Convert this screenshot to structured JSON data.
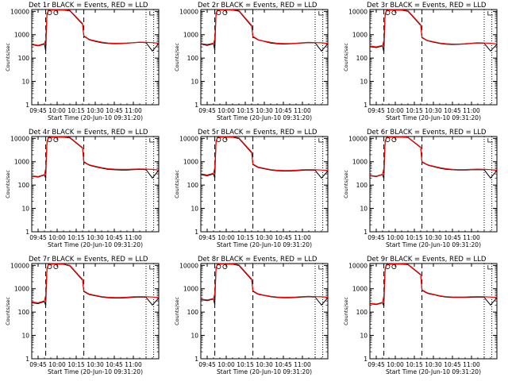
{
  "layout_note": "",
  "chart_data": [
    {
      "type": "line",
      "title": "Det 1r BLACK = Events, RED = LLD",
      "xlabel": "Start Time (20-Jun-10 09:31:20)",
      "ylabel": "Counts/sec",
      "y_scale": "log",
      "ylim": [
        1,
        12000
      ],
      "y_ticks": [
        "1",
        "10",
        "100",
        "1000",
        "10000"
      ],
      "x_tick_labels": [
        "09:45",
        "10:00",
        "10:15",
        "10:30",
        "10:45",
        "11:00"
      ],
      "grid": false,
      "legend": "none",
      "colors": {
        "events": "#000000",
        "lld": "#ff0000"
      },
      "x_minutes": [
        0,
        5,
        10,
        11,
        12,
        13,
        15,
        18,
        20,
        25,
        30,
        40,
        41,
        44,
        45,
        46,
        50,
        55,
        60,
        65,
        70,
        75,
        80,
        85,
        90,
        95,
        100
      ],
      "lld": [
        400,
        350,
        420,
        600,
        8000,
        11000,
        11500,
        11800,
        11700,
        11600,
        11000,
        3000,
        900,
        700,
        650,
        620,
        550,
        480,
        440,
        430,
        430,
        440,
        460,
        480,
        470,
        460,
        430
      ],
      "events": [
        380,
        330,
        400,
        200,
        7000,
        10500,
        11200,
        11500,
        11400,
        11300,
        10500,
        2800,
        850,
        680,
        620,
        590,
        520,
        450,
        420,
        410,
        415,
        430,
        450,
        470,
        460,
        200,
        420
      ],
      "events_end_drop": true
    },
    {
      "type": "line",
      "title": "Det 2r BLACK = Events, RED = LLD",
      "xlabel": "Start Time (20-Jun-10 09:31:20)",
      "ylabel": "Counts/sec",
      "y_scale": "log",
      "ylim": [
        1,
        12000
      ],
      "y_ticks": [
        "1",
        "10",
        "100",
        "1000",
        "10000"
      ],
      "x_tick_labels": [
        "09:45",
        "10:00",
        "10:15",
        "10:30",
        "10:45",
        "11:00"
      ],
      "grid": false,
      "legend": "none",
      "colors": {
        "events": "#000000",
        "lld": "#ff0000"
      },
      "x_minutes": [
        0,
        5,
        10,
        11,
        12,
        13,
        15,
        18,
        20,
        25,
        30,
        40,
        41,
        44,
        45,
        46,
        50,
        55,
        60,
        65,
        70,
        75,
        80,
        85,
        90,
        95,
        100
      ],
      "lld": [
        420,
        380,
        430,
        650,
        8500,
        11200,
        11700,
        11900,
        11800,
        11600,
        10800,
        2500,
        850,
        680,
        620,
        600,
        530,
        470,
        430,
        420,
        420,
        430,
        450,
        470,
        460,
        450,
        420
      ],
      "events": [
        400,
        350,
        410,
        220,
        7500,
        10600,
        11300,
        11600,
        11500,
        11300,
        10200,
        2300,
        800,
        650,
        600,
        580,
        510,
        440,
        410,
        400,
        405,
        420,
        440,
        460,
        450,
        200,
        410
      ],
      "events_end_drop": true
    },
    {
      "type": "line",
      "title": "Det 3r BLACK = Events, RED = LLD",
      "xlabel": "Start Time (20-Jun-10 09:31:20)",
      "ylabel": "Counts/sec",
      "y_scale": "log",
      "ylim": [
        1,
        12000
      ],
      "y_ticks": [
        "1",
        "10",
        "100",
        "1000",
        "10000"
      ],
      "x_tick_labels": [
        "09:45",
        "10:00",
        "10:15",
        "10:30",
        "10:45",
        "11:00"
      ],
      "grid": false,
      "legend": "none",
      "colors": {
        "events": "#000000",
        "lld": "#ff0000"
      },
      "x_minutes": [
        0,
        5,
        10,
        11,
        12,
        13,
        15,
        18,
        20,
        25,
        30,
        40,
        41,
        44,
        45,
        46,
        50,
        55,
        60,
        65,
        70,
        75,
        80,
        85,
        90,
        95,
        100
      ],
      "lld": [
        330,
        300,
        350,
        550,
        7500,
        11000,
        11500,
        11800,
        11700,
        11500,
        10600,
        2700,
        780,
        620,
        580,
        560,
        500,
        440,
        410,
        400,
        400,
        410,
        430,
        450,
        440,
        430,
        400
      ],
      "events": [
        310,
        280,
        330,
        180,
        6800,
        10300,
        11100,
        11500,
        11300,
        11200,
        10000,
        2500,
        740,
        600,
        560,
        540,
        480,
        420,
        390,
        380,
        385,
        400,
        420,
        440,
        430,
        200,
        390
      ],
      "events_end_drop": true
    },
    {
      "type": "line",
      "title": "Det 4r BLACK = Events, RED = LLD",
      "xlabel": "Start Time (20-Jun-10 09:31:20)",
      "ylabel": "Counts/sec",
      "y_scale": "log",
      "ylim": [
        1,
        12000
      ],
      "y_ticks": [
        "1",
        "10",
        "100",
        "1000",
        "10000"
      ],
      "x_tick_labels": [
        "09:45",
        "10:00",
        "10:15",
        "10:30",
        "10:45",
        "11:00"
      ],
      "grid": false,
      "legend": "none",
      "colors": {
        "events": "#000000",
        "lld": "#ff0000"
      },
      "x_minutes": [
        0,
        5,
        10,
        11,
        12,
        13,
        15,
        18,
        20,
        25,
        30,
        40,
        41,
        44,
        45,
        46,
        50,
        55,
        60,
        65,
        70,
        75,
        80,
        85,
        90,
        95,
        100
      ],
      "lld": [
        250,
        230,
        280,
        500,
        7000,
        10800,
        11400,
        11700,
        11600,
        11500,
        11000,
        4000,
        1000,
        800,
        760,
        720,
        640,
        560,
        500,
        480,
        470,
        470,
        480,
        490,
        480,
        470,
        440
      ],
      "events": [
        240,
        220,
        270,
        200,
        6500,
        10200,
        11000,
        11400,
        11300,
        11200,
        10500,
        3800,
        950,
        770,
        720,
        690,
        610,
        530,
        470,
        450,
        440,
        440,
        460,
        470,
        460,
        200,
        430
      ],
      "events_end_drop": true
    },
    {
      "type": "line",
      "title": "Det 5r BLACK = Events, RED = LLD",
      "xlabel": "Start Time (20-Jun-10 09:31:20)",
      "ylabel": "Counts/sec",
      "y_scale": "log",
      "ylim": [
        1,
        12000
      ],
      "y_ticks": [
        "1",
        "10",
        "100",
        "1000",
        "10000"
      ],
      "x_tick_labels": [
        "09:45",
        "10:00",
        "10:15",
        "10:30",
        "10:45",
        "11:00"
      ],
      "grid": false,
      "legend": "none",
      "colors": {
        "events": "#000000",
        "lld": "#ff0000"
      },
      "x_minutes": [
        0,
        5,
        10,
        11,
        12,
        13,
        15,
        18,
        20,
        25,
        30,
        40,
        41,
        44,
        45,
        46,
        50,
        55,
        60,
        65,
        70,
        75,
        80,
        85,
        90,
        95,
        100
      ],
      "lld": [
        300,
        270,
        320,
        550,
        7500,
        11000,
        11500,
        11800,
        11700,
        11500,
        10400,
        2600,
        800,
        640,
        600,
        580,
        520,
        460,
        430,
        420,
        420,
        430,
        450,
        460,
        450,
        440,
        420
      ],
      "events": [
        280,
        250,
        300,
        200,
        7000,
        10400,
        11100,
        11500,
        11300,
        11200,
        9800,
        2400,
        760,
        610,
        570,
        550,
        500,
        440,
        410,
        400,
        400,
        410,
        430,
        440,
        430,
        200,
        400
      ],
      "events_end_drop": true
    },
    {
      "type": "line",
      "title": "Det 6r BLACK = Events, RED = LLD",
      "xlabel": "Start Time (20-Jun-10 09:31:20)",
      "ylabel": "Counts/sec",
      "y_scale": "log",
      "ylim": [
        1,
        12000
      ],
      "y_ticks": [
        "1",
        "10",
        "100",
        "1000",
        "10000"
      ],
      "x_tick_labels": [
        "09:45",
        "10:00",
        "10:15",
        "10:30",
        "10:45",
        "11:00"
      ],
      "grid": false,
      "legend": "none",
      "colors": {
        "events": "#000000",
        "lld": "#ff0000"
      },
      "x_minutes": [
        0,
        5,
        10,
        11,
        12,
        13,
        15,
        18,
        20,
        25,
        30,
        40,
        41,
        44,
        45,
        46,
        50,
        55,
        60,
        65,
        70,
        75,
        80,
        85,
        90,
        95,
        100
      ],
      "lld": [
        260,
        240,
        290,
        520,
        7200,
        10900,
        11500,
        11800,
        11700,
        11600,
        11200,
        4200,
        1000,
        820,
        770,
        730,
        650,
        560,
        500,
        470,
        460,
        460,
        470,
        480,
        470,
        460,
        430
      ],
      "events": [
        250,
        230,
        280,
        190,
        6700,
        10300,
        11100,
        11500,
        11300,
        11300,
        10800,
        4000,
        960,
        790,
        740,
        700,
        620,
        530,
        470,
        450,
        440,
        440,
        450,
        460,
        450,
        200,
        420
      ],
      "events_end_drop": true
    },
    {
      "type": "line",
      "title": "Det 7r BLACK = Events, RED = LLD",
      "xlabel": "Start Time (20-Jun-10 09:31:20)",
      "ylabel": "Counts/sec",
      "y_scale": "log",
      "ylim": [
        1,
        12000
      ],
      "y_ticks": [
        "1",
        "10",
        "100",
        "1000",
        "10000"
      ],
      "x_tick_labels": [
        "09:45",
        "10:00",
        "10:15",
        "10:30",
        "10:45",
        "11:00"
      ],
      "grid": false,
      "legend": "none",
      "colors": {
        "events": "#000000",
        "lld": "#ff0000"
      },
      "x_minutes": [
        0,
        5,
        10,
        11,
        12,
        13,
        15,
        18,
        20,
        25,
        30,
        40,
        41,
        44,
        45,
        46,
        50,
        55,
        60,
        65,
        70,
        75,
        80,
        85,
        90,
        95,
        100
      ],
      "lld": [
        270,
        250,
        300,
        520,
        7300,
        11000,
        11500,
        11800,
        11700,
        11400,
        10000,
        2500,
        800,
        640,
        600,
        580,
        520,
        460,
        430,
        420,
        420,
        430,
        450,
        460,
        450,
        440,
        420
      ],
      "events": [
        250,
        230,
        280,
        190,
        6800,
        10400,
        11100,
        11500,
        11300,
        11100,
        9500,
        2300,
        760,
        610,
        570,
        550,
        500,
        440,
        410,
        400,
        400,
        410,
        430,
        440,
        430,
        200,
        400
      ],
      "events_end_drop": true
    },
    {
      "type": "line",
      "title": "Det 8r BLACK = Events, RED = LLD",
      "xlabel": "Start Time (20-Jun-10 09:31:20)",
      "ylabel": "Counts/sec",
      "y_scale": "log",
      "ylim": [
        1,
        12000
      ],
      "y_ticks": [
        "1",
        "10",
        "100",
        "1000",
        "10000"
      ],
      "x_tick_labels": [
        "09:45",
        "10:00",
        "10:15",
        "10:30",
        "10:45",
        "11:00"
      ],
      "grid": false,
      "legend": "none",
      "colors": {
        "events": "#000000",
        "lld": "#ff0000"
      },
      "x_minutes": [
        0,
        5,
        10,
        11,
        12,
        13,
        15,
        18,
        20,
        25,
        30,
        40,
        41,
        44,
        45,
        46,
        50,
        55,
        60,
        65,
        70,
        75,
        80,
        85,
        90,
        95,
        100
      ],
      "lld": [
        360,
        330,
        380,
        600,
        8000,
        11200,
        11600,
        11900,
        11800,
        11500,
        10500,
        2600,
        820,
        650,
        610,
        590,
        530,
        470,
        440,
        430,
        430,
        440,
        460,
        470,
        460,
        450,
        430
      ],
      "events": [
        340,
        310,
        360,
        210,
        7400,
        10600,
        11200,
        11600,
        11400,
        11200,
        9900,
        2400,
        780,
        620,
        580,
        560,
        510,
        450,
        420,
        410,
        410,
        420,
        440,
        450,
        440,
        200,
        410
      ],
      "events_end_drop": true
    },
    {
      "type": "line",
      "title": "Det 9r BLACK = Events, RED = LLD",
      "xlabel": "Start Time (20-Jun-10 09:31:20)",
      "ylabel": "Counts/sec",
      "y_scale": "log",
      "ylim": [
        1,
        12000
      ],
      "y_ticks": [
        "1",
        "10",
        "100",
        "1000",
        "10000"
      ],
      "x_tick_labels": [
        "09:45",
        "10:00",
        "10:15",
        "10:30",
        "10:45",
        "11:00"
      ],
      "grid": false,
      "legend": "none",
      "colors": {
        "events": "#000000",
        "lld": "#ff0000"
      },
      "x_minutes": [
        0,
        5,
        10,
        11,
        12,
        13,
        15,
        18,
        20,
        25,
        30,
        40,
        41,
        44,
        45,
        46,
        50,
        55,
        60,
        65,
        70,
        75,
        80,
        85,
        90,
        95,
        100
      ],
      "lld": [
        240,
        220,
        260,
        500,
        7000,
        10800,
        11400,
        11700,
        11600,
        11500,
        11100,
        4100,
        900,
        720,
        680,
        650,
        580,
        500,
        460,
        440,
        440,
        440,
        450,
        460,
        450,
        440,
        420
      ],
      "events": [
        230,
        210,
        250,
        180,
        6500,
        10200,
        11000,
        11400,
        11300,
        11200,
        10700,
        3900,
        860,
        690,
        650,
        620,
        560,
        480,
        440,
        420,
        420,
        420,
        430,
        440,
        430,
        200,
        410
      ],
      "events_end_drop": true
    }
  ]
}
